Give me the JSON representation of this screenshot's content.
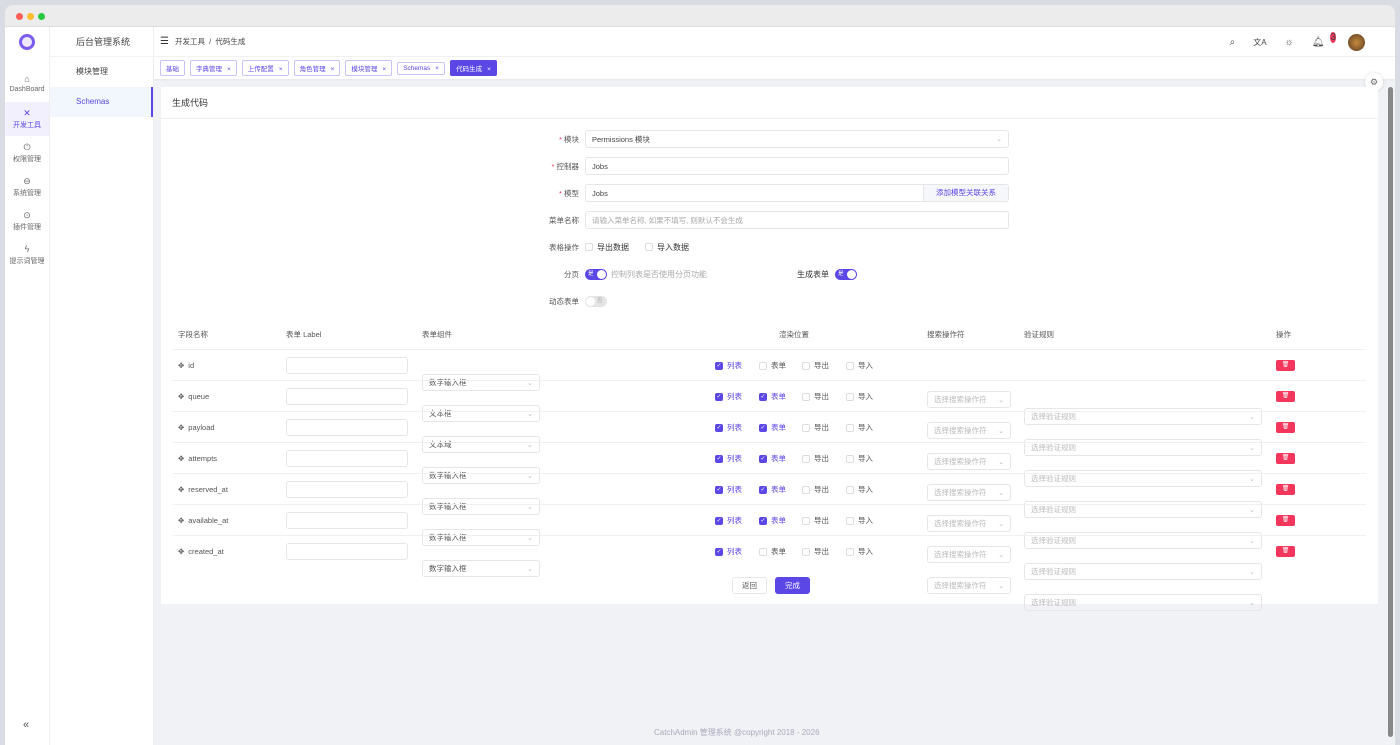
{
  "rail": [
    {
      "icon": "home-icon",
      "glyph": "⌂",
      "label": "DashBoard"
    },
    {
      "icon": "tools-icon",
      "glyph": "✕",
      "label": "开发工具",
      "active": true
    },
    {
      "icon": "power-icon",
      "glyph": "⏻",
      "label": "权限管理"
    },
    {
      "icon": "system-icon",
      "glyph": "⊖",
      "label": "系统管理"
    },
    {
      "icon": "plugin-icon",
      "glyph": "⊙",
      "label": "插件管理"
    },
    {
      "icon": "bolt-icon",
      "glyph": "ϟ",
      "label": "提示词管理"
    }
  ],
  "submenu": {
    "title": "后台管理系统",
    "items": [
      {
        "label": "模块管理"
      },
      {
        "label": "Schemas",
        "active": true
      }
    ]
  },
  "breadcrumb": [
    "开发工具",
    "代码生成"
  ],
  "notifications": "3",
  "tabs": [
    {
      "label": "基础",
      "closable": false
    },
    {
      "label": "字典管理",
      "closable": true
    },
    {
      "label": "上传配置",
      "closable": true
    },
    {
      "label": "角色管理",
      "closable": true
    },
    {
      "label": "模块管理",
      "closable": true
    },
    {
      "label": "Schemas",
      "closable": true
    },
    {
      "label": "代码生成",
      "closable": true,
      "active": true
    }
  ],
  "card": {
    "title": "生成代码"
  },
  "form": {
    "module": {
      "label": "模块",
      "value": "Permissions 模块"
    },
    "controller": {
      "label": "控制器",
      "value": "Jobs"
    },
    "model": {
      "label": "模型",
      "value": "Jobs",
      "append": "添加模型关联关系"
    },
    "menu": {
      "label": "菜单名称",
      "placeholder": "请输入菜单名称, 如果不填写, 则默认不会生成"
    },
    "table_ops": {
      "label": "表格操作",
      "options": [
        {
          "label": "导出数据",
          "checked": false
        },
        {
          "label": "导入数据",
          "checked": false
        }
      ]
    },
    "paginate": {
      "label": "分页",
      "on": true,
      "switch_text": "是",
      "hint": "控制列表是否使用分页功能"
    },
    "gen_form": {
      "label": "生成表单",
      "on": true,
      "switch_text": "是"
    },
    "dynamic": {
      "label": "动态表单",
      "on": false,
      "switch_text": "否"
    }
  },
  "table": {
    "headers": [
      "字段名称",
      "表单 Label",
      "表单组件",
      "渲染位置",
      "搜索操作符",
      "验证规则",
      "操作"
    ],
    "render_labels": [
      "列表",
      "表单",
      "导出",
      "导入"
    ],
    "search_placeholder": "选择搜索操作符",
    "rule_placeholder": "选择验证规则",
    "rows": [
      {
        "field": "id",
        "component": "数字输入框",
        "render": [
          true,
          false,
          false,
          false
        ]
      },
      {
        "field": "queue",
        "component": "文本框",
        "render": [
          true,
          true,
          false,
          false
        ]
      },
      {
        "field": "payload",
        "component": "文本域",
        "render": [
          true,
          true,
          false,
          false
        ]
      },
      {
        "field": "attempts",
        "component": "数字输入框",
        "render": [
          true,
          true,
          false,
          false
        ]
      },
      {
        "field": "reserved_at",
        "component": "数字输入框",
        "render": [
          true,
          true,
          false,
          false
        ]
      },
      {
        "field": "available_at",
        "component": "数字输入框",
        "render": [
          true,
          true,
          false,
          false
        ]
      },
      {
        "field": "created_at",
        "component": "数字输入框",
        "render": [
          true,
          false,
          false,
          false
        ]
      }
    ]
  },
  "buttons": {
    "back": "返回",
    "finish": "完成"
  },
  "footer": "CatchAdmin 管理系统 @copyright 2018 - 2026"
}
